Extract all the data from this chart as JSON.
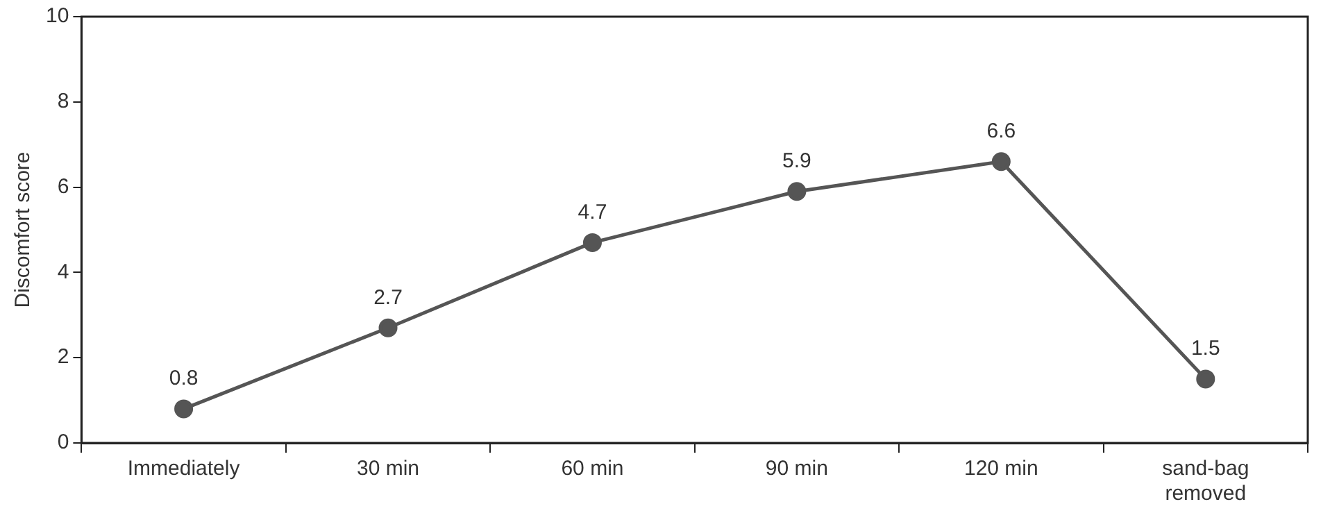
{
  "chart_data": {
    "type": "line",
    "ylabel": "Discomfort score",
    "categories": [
      "Immediately",
      "30 min",
      "60 min",
      "90 min",
      "120 min",
      "sand-bag removed"
    ],
    "series": [
      {
        "color": "#555555",
        "values": [
          0.8,
          2.7,
          4.7,
          5.9,
          6.6,
          1.5
        ]
      }
    ],
    "ylim": [
      0,
      10
    ],
    "yticks": [
      0,
      2,
      4,
      6,
      8,
      10
    ],
    "grid": false,
    "legend": false,
    "marker": "circle",
    "line_style": "solid",
    "data_labels": true
  }
}
